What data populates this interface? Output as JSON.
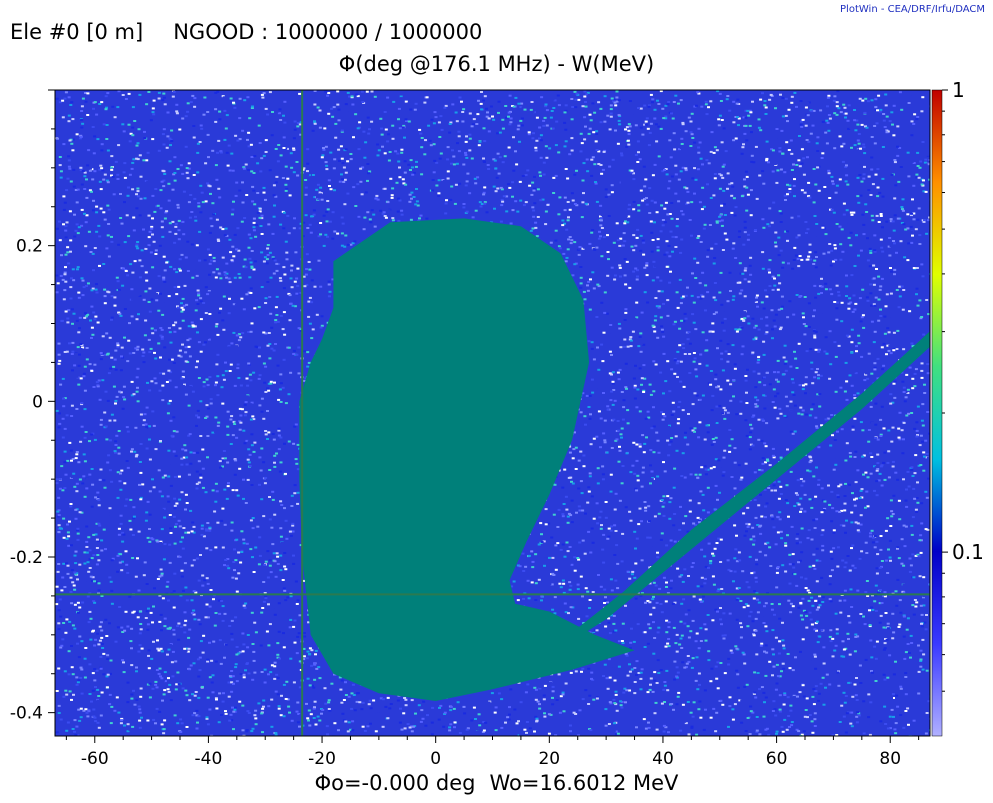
{
  "header": {
    "element": "Ele #0 [0 m]",
    "ngood": "NGOOD : 1000000 / 1000000",
    "brand": "PlotWin - CEA/DRF/Irfu/DACM"
  },
  "footer": {
    "phase_ref": "Φo=-0.000 deg",
    "energy_ref": "Wo=16.6012 MeV"
  },
  "colors": {
    "background_noise": [
      "#1a2be0",
      "#3b4cf0",
      "#5560ff",
      "#2a3ad8",
      "#7a86ff",
      "#ffffff",
      "#c8ccff",
      "#18a0e8",
      "#40d0d0"
    ],
    "beam": "#00807a",
    "axis": "#000000"
  },
  "chart_data": {
    "type": "scatter",
    "title": "Φ(deg @176.1 MHz) - W(MeV)",
    "xlabel": "",
    "ylabel": "",
    "xlim": [
      -67,
      87
    ],
    "ylim": [
      -0.43,
      0.4
    ],
    "x_ticks": [
      -60,
      -40,
      -20,
      0,
      20,
      40,
      60,
      80
    ],
    "y_ticks": [
      0.2,
      0,
      -0.2,
      -0.4
    ],
    "tick_labels_x": [
      "-60",
      "-40",
      "-20",
      "0",
      "20",
      "40",
      "60",
      "80"
    ],
    "tick_labels_y": [
      "0.2",
      "0",
      "-0.2",
      "-0.4"
    ],
    "reference_lines": {
      "x": -23.5,
      "y": -0.248
    },
    "colorbar": {
      "scale": "log",
      "labels": [
        "1",
        "0.1"
      ],
      "label_values": [
        1,
        0.1
      ],
      "min_value": 0.04,
      "stops": [
        "#b0b0ff",
        "#3a3aff",
        "#0000c8",
        "#00c0e0",
        "#40e080",
        "#e0ff00",
        "#ff9000",
        "#c00000"
      ]
    },
    "regions": [
      {
        "name": "core",
        "points": [
          [
            -18,
            0.18
          ],
          [
            -8,
            0.23
          ],
          [
            5,
            0.235
          ],
          [
            15,
            0.225
          ],
          [
            22,
            0.19
          ],
          [
            26,
            0.13
          ],
          [
            27,
            0.05
          ],
          [
            24,
            -0.05
          ],
          [
            20,
            -0.12
          ],
          [
            16,
            -0.18
          ],
          [
            13,
            -0.23
          ],
          [
            14,
            -0.26
          ],
          [
            20,
            -0.27
          ],
          [
            28,
            -0.3
          ],
          [
            35,
            -0.32
          ],
          [
            24,
            -0.345
          ],
          [
            10,
            -0.37
          ],
          [
            0,
            -0.385
          ],
          [
            -10,
            -0.375
          ],
          [
            -18,
            -0.35
          ],
          [
            -22,
            -0.3
          ],
          [
            -23.5,
            -0.2
          ],
          [
            -24,
            -0.1
          ],
          [
            -24,
            0.0
          ],
          [
            -22,
            0.05
          ],
          [
            -20,
            0.08
          ],
          [
            -18,
            0.12
          ],
          [
            -18,
            0.18
          ]
        ]
      },
      {
        "name": "tail",
        "points": [
          [
            16,
            -0.345
          ],
          [
            30,
            -0.28
          ],
          [
            45,
            -0.19
          ],
          [
            60,
            -0.1
          ],
          [
            75,
            -0.01
          ],
          [
            87,
            0.07
          ],
          [
            87,
            0.09
          ],
          [
            75,
            0.01
          ],
          [
            60,
            -0.08
          ],
          [
            45,
            -0.165
          ],
          [
            33,
            -0.245
          ],
          [
            20,
            -0.32
          ],
          [
            16,
            -0.345
          ]
        ]
      }
    ]
  }
}
